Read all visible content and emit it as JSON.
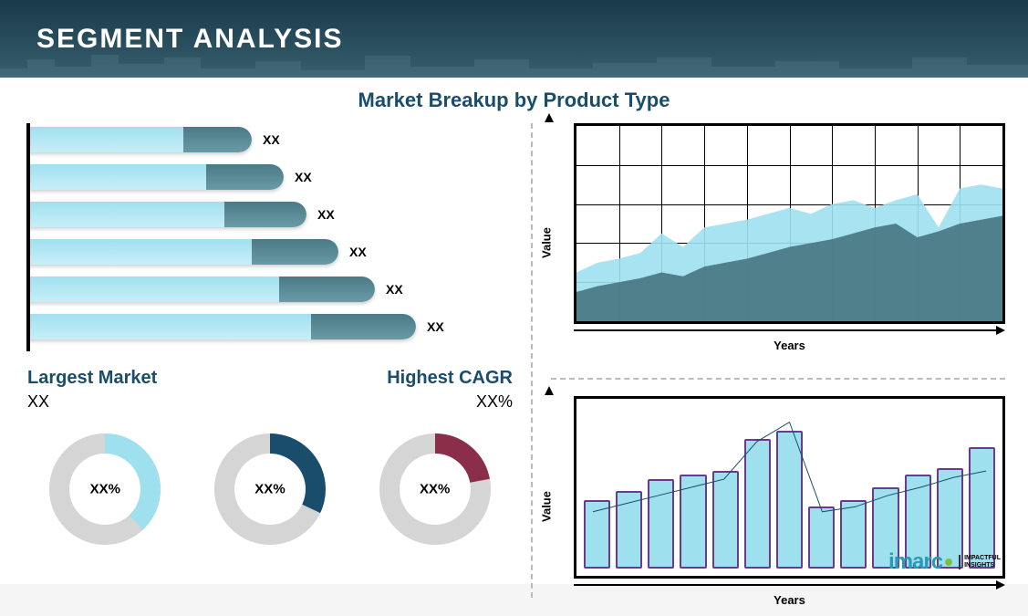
{
  "header": {
    "title": "SEGMENT ANALYSIS"
  },
  "subtitle": {
    "text": "Market Breakup by Product Type",
    "color": "#1a4d6b"
  },
  "hbar_chart": {
    "type": "bar-horizontal-stacked",
    "seg1_color": "#9fe0ef",
    "seg2_color": "#4a7a85",
    "label": "XX",
    "bars": [
      {
        "seg1": 170,
        "seg2": 75
      },
      {
        "seg1": 195,
        "seg2": 85
      },
      {
        "seg1": 215,
        "seg2": 90
      },
      {
        "seg1": 245,
        "seg2": 95
      },
      {
        "seg1": 275,
        "seg2": 105
      },
      {
        "seg1": 310,
        "seg2": 115
      }
    ]
  },
  "metrics": {
    "largest": {
      "title": "Largest Market",
      "value": "XX",
      "title_color": "#1a4d6b"
    },
    "cagr": {
      "title": "Highest CAGR",
      "value": "XX%",
      "title_color": "#1a4d6b"
    }
  },
  "donuts": [
    {
      "pct": 38,
      "color": "#9fe0ef",
      "bg": "#d5d5d5",
      "label": "XX%"
    },
    {
      "pct": 32,
      "color": "#1a4d6b",
      "bg": "#d5d5d5",
      "label": "XX%"
    },
    {
      "pct": 22,
      "color": "#8b2e4a",
      "bg": "#d5d5d5",
      "label": "XX%"
    }
  ],
  "area_chart": {
    "type": "area",
    "grid_cols": 10,
    "grid_rows": 5,
    "xlabel": "Years",
    "ylabel": "Value",
    "series1_color": "#9fe0ef",
    "series2_color": "#4a7a85",
    "series1": [
      25,
      30,
      32,
      35,
      45,
      38,
      48,
      50,
      52,
      55,
      58,
      55,
      60,
      62,
      58,
      62,
      65,
      48,
      68,
      70,
      68
    ],
    "series2": [
      15,
      18,
      20,
      22,
      25,
      23,
      28,
      30,
      32,
      35,
      38,
      40,
      42,
      45,
      48,
      50,
      43,
      46,
      50,
      52,
      54
    ]
  },
  "combo_chart": {
    "type": "bar-line-combo",
    "xlabel": "Years",
    "ylabel": "Value",
    "bar_fill": "#9fe0ef",
    "bar_border": "#6b3a8a",
    "line_color": "#1a4d6b",
    "bars": [
      42,
      48,
      55,
      58,
      60,
      80,
      85,
      38,
      42,
      50,
      58,
      62,
      75
    ],
    "line": [
      35,
      40,
      45,
      50,
      55,
      78,
      90,
      35,
      38,
      45,
      50,
      56,
      60
    ]
  },
  "logo": {
    "text": "imarc",
    "text_color": "#2a9bb5",
    "dot_color": "#7bc043",
    "tagline1": "IMPACTFUL",
    "tagline2": "INSIGHTS"
  }
}
